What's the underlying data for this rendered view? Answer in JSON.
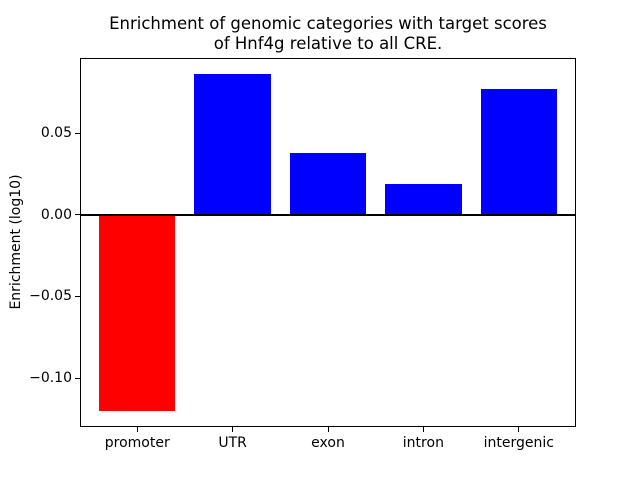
{
  "figure": {
    "background": "#ffffff"
  },
  "chart_data": {
    "type": "bar",
    "title": "Enrichment of genomic categories with target scores\nof Hnf4g relative to all CRE.",
    "ylabel": "Enrichment (log10)",
    "xlabel": "",
    "categories": [
      "promoter",
      "UTR",
      "exon",
      "intron",
      "intergenic"
    ],
    "values": [
      -0.12,
      0.086,
      0.038,
      0.019,
      0.077
    ],
    "bar_colors": [
      "#ff0000",
      "#0000ff",
      "#0000ff",
      "#0000ff",
      "#0000ff"
    ],
    "positive_color": "#0000ff",
    "negative_color": "#ff0000",
    "ytick_values": [
      0.05,
      0.0,
      -0.05,
      -0.1
    ],
    "ytick_labels": [
      "0.05",
      "0.00",
      "−0.05",
      "−0.10"
    ],
    "ylim": [
      -0.13,
      0.096
    ],
    "xlim": [
      -0.6,
      4.6
    ],
    "bar_width": 0.8,
    "zero_line_value": 0,
    "grid": false,
    "legend": false,
    "axis_color": "#000000",
    "text_color": "#000000"
  }
}
